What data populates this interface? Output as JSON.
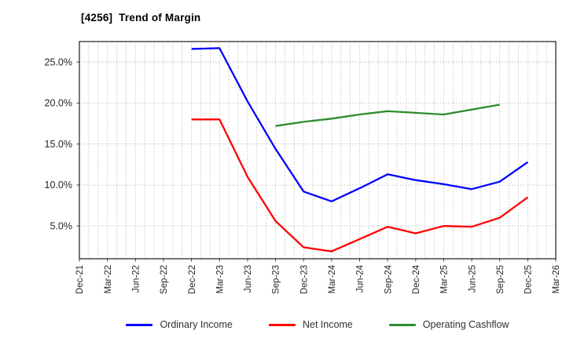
{
  "chart": {
    "title": "[4256]  Trend of Margin"
  },
  "chart_data": {
    "type": "line",
    "title": "[4256]  Trend of Margin",
    "xlabel": "",
    "ylabel": "",
    "categories": [
      "Dec-21",
      "Mar-22",
      "Jun-22",
      "Sep-22",
      "Dec-22",
      "Mar-23",
      "Jun-23",
      "Sep-23",
      "Dec-23",
      "Mar-24",
      "Jun-24",
      "Sep-24",
      "Dec-24",
      "Mar-25",
      "Jun-25",
      "Sep-25",
      "Dec-25",
      "Mar-26"
    ],
    "series": [
      {
        "name": "Ordinary Income",
        "color": "#0000ff",
        "values": [
          null,
          null,
          null,
          null,
          26.6,
          26.7,
          20.2,
          14.4,
          9.2,
          8.0,
          9.6,
          11.3,
          10.6,
          10.1,
          9.5,
          10.4,
          12.8,
          null
        ]
      },
      {
        "name": "Net Income",
        "color": "#ff0000",
        "values": [
          null,
          null,
          null,
          null,
          18.0,
          18.0,
          11.0,
          5.6,
          2.4,
          1.9,
          3.4,
          4.9,
          4.1,
          5.0,
          4.9,
          6.0,
          8.5,
          null
        ]
      },
      {
        "name": "Operating Cashflow",
        "color": "#2e8b2e",
        "values": [
          null,
          null,
          null,
          null,
          null,
          null,
          null,
          17.2,
          17.7,
          18.1,
          18.6,
          19.0,
          18.8,
          18.6,
          19.2,
          19.8,
          null,
          null
        ]
      }
    ],
    "y_ticks": [
      5,
      10,
      15,
      20,
      25
    ],
    "y_ticklabels": [
      "5.0%",
      "10.0%",
      "15.0%",
      "20.0%",
      "25.0%"
    ],
    "ylim": [
      1.0,
      27.5
    ],
    "x_minor_divisions_per_interval": 3,
    "grid": "dotted",
    "grid_color": "#a6a6a6",
    "axis_color": "#3c3c3c",
    "tick_label_color": "#262626",
    "legend_position": "bottom"
  }
}
